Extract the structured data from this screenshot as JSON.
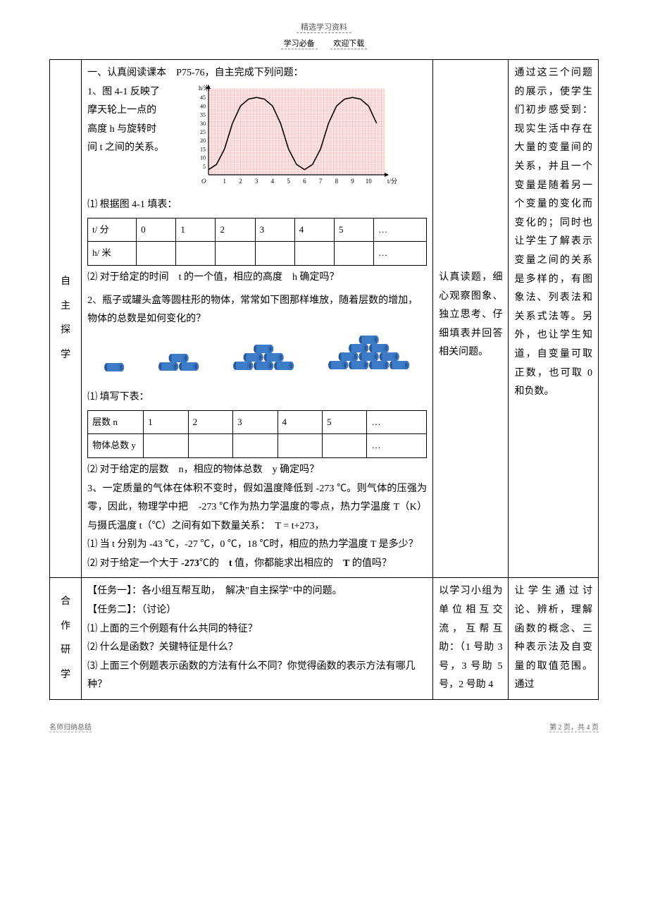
{
  "header": {
    "top": "精选学习资料",
    "left": "学习必备",
    "right": "欢迎下载"
  },
  "rows": {
    "zizhu": {
      "label1": "自",
      "label2": "主",
      "label3": "探",
      "label4": "学",
      "p1": "一、认真阅读课本　P75-76，自主完成下列问题：",
      "p2a": "1、图 4-1 反映了",
      "p2b": "摩天轮上一点的",
      "p2c": "高度 h 与旋转时",
      "p2d": "间 t 之间的关系。",
      "p3": "⑴ 根据图 4-1 填表：",
      "table1": {
        "r1": [
          "t/ 分",
          "0",
          "1",
          "2",
          "3",
          "4",
          "5",
          "…"
        ],
        "r2": [
          "h/ 米",
          "",
          "",
          "",
          "",
          "",
          "",
          "…"
        ]
      },
      "p4": "⑵ 对于给定的时间　t 的一个值，相应的高度　h 确定吗？",
      "p5": "2、瓶子或罐头盒等圆柱形的物体，常常如下图那样堆放，随着层数的增加，物体的总数是如何变化的？",
      "p6": "⑴ 填写下表：",
      "table2": {
        "r1": [
          "层数 n",
          "1",
          "2",
          "3",
          "4",
          "5",
          "…"
        ],
        "r2": [
          "物体总数 y",
          "",
          "",
          "",
          "",
          "",
          "…"
        ]
      },
      "p7": "⑵ 对于给定的层数　n，相应的物体总数　y 确定吗？",
      "p8": "3、一定质量的气体在体积不变时，假如温度降低到 -273 ℃。则气体的压强为零，因此，物理学中把　-273 ℃作为热力学温度的零点，热力学温度 T（K）与摄氏温度 t（℃）之间有如下数量关系：　T = t+273，",
      "p9": "⑴ 当 t 分别为 -43 ℃，-27 ℃，0 ℃，18 ℃时，相应的热力学温度 T 是多少？",
      "p10a": "⑵ 对于给定一个大于 ",
      "p10b": "-273",
      "p10c": "℃的　",
      "p10d": "t",
      "p10e": " 值，你都能求出相应的　",
      "p10f": "T",
      "p10g": " 的值吗？",
      "mid": "认真读题，细心观察图象、独立思考、仔细填表并回答相关问题。",
      "right": "通过这三个问题的展示，使学生们初步感受到：现实生活中存在大量的变量间的关系，并且一个变量是随着另一个变量的变化而变化的；同时也让学生了解表示变量之间的关系是多样的，有图象法、列表法和关系式法等。另外，也让学生知道，自变量可取正数，也可取 0 和负数。"
    },
    "hezuo": {
      "label1": "合",
      "label2": "作",
      "label3": "研",
      "label4": "学",
      "p1": "【任务一】：各小组互帮互助，　解决\"自主探学\"中的问题。",
      "p2": "【任务二】：（讨论）",
      "p3": "⑴ 上面的三个例题有什么共同的特征？",
      "p4": "⑵ 什么是函数？关键特征是什么？",
      "p5": "⑶ 上面三个例题表示函数的方法有什么不同？你觉得函数的表示方法有哪几种？",
      "mid": "以学习小组为单位相互交流，互帮互助：（1 号助 3 号，3 号助 5 号，2 号助 4",
      "right": "让学生通过讨论、辨析，理解函数的概念、三种表示法及自变量的取值范围。通过"
    }
  },
  "chart": {
    "ylabel": "h/米",
    "yticks": [
      5,
      10,
      15,
      20,
      25,
      30,
      35,
      40,
      45
    ],
    "xticks": [
      1,
      2,
      3,
      4,
      5,
      6,
      7,
      8,
      9,
      10
    ],
    "xlabel": "t/分",
    "bg": "#fde9e9",
    "grid": "#f3b9b9",
    "axis": "#000000",
    "curve": "#000000",
    "ylim": [
      0,
      50
    ],
    "xlim": [
      0,
      11
    ],
    "points": [
      [
        0,
        3
      ],
      [
        0.5,
        6
      ],
      [
        1,
        15
      ],
      [
        1.5,
        30
      ],
      [
        2,
        40
      ],
      [
        2.5,
        44
      ],
      [
        3,
        45
      ],
      [
        3.5,
        44
      ],
      [
        4,
        40
      ],
      [
        4.5,
        30
      ],
      [
        5,
        15
      ],
      [
        5.5,
        6
      ],
      [
        6,
        3
      ],
      [
        6.5,
        6
      ],
      [
        7,
        15
      ],
      [
        7.5,
        30
      ],
      [
        8,
        40
      ],
      [
        8.5,
        44
      ],
      [
        9,
        45
      ],
      [
        9.5,
        44
      ],
      [
        10,
        40
      ],
      [
        10.5,
        30
      ]
    ]
  },
  "cylinders": {
    "color": "#3d7cc9",
    "shadow": "#2a5a99",
    "stacks": [
      1,
      2,
      3,
      4
    ]
  },
  "footer": {
    "left": "名师归纳总结",
    "right": "第 2 页，共 4 页"
  }
}
